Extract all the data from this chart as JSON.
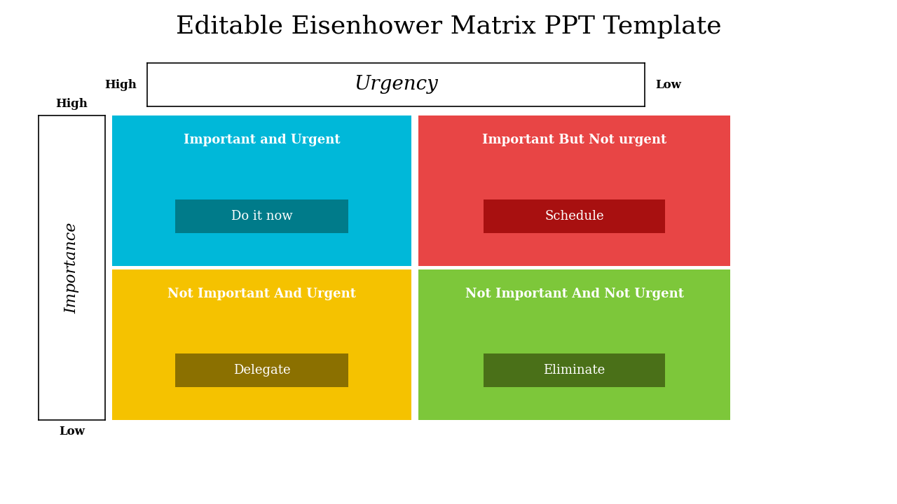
{
  "title": "Editable Eisenhower Matrix PPT Template",
  "title_fontsize": 26,
  "urgency_label": "Urgency",
  "importance_label": "Importance",
  "high_label": "High",
  "low_label_x": "Low",
  "low_label_y": "Low",
  "quadrants": [
    {
      "label": "Important and Urgent",
      "action": "Do it now",
      "bg_color": "#00B8D9",
      "btn_color": "#007B8A",
      "col": 0,
      "row": 0
    },
    {
      "label": "Important But Not urgent",
      "action": "Schedule",
      "bg_color": "#E84545",
      "btn_color": "#A81010",
      "col": 1,
      "row": 0
    },
    {
      "label": "Not Important And Urgent",
      "action": "Delegate",
      "bg_color": "#F5C200",
      "btn_color": "#8B7000",
      "col": 0,
      "row": 1
    },
    {
      "label": "Not Important And Not Urgent",
      "action": "Eliminate",
      "bg_color": "#7DC73A",
      "btn_color": "#4A7018",
      "col": 1,
      "row": 1
    }
  ],
  "background_color": "#FFFFFF",
  "label_text_color": "#FFFFFF",
  "action_text_color": "#FFFFFF"
}
